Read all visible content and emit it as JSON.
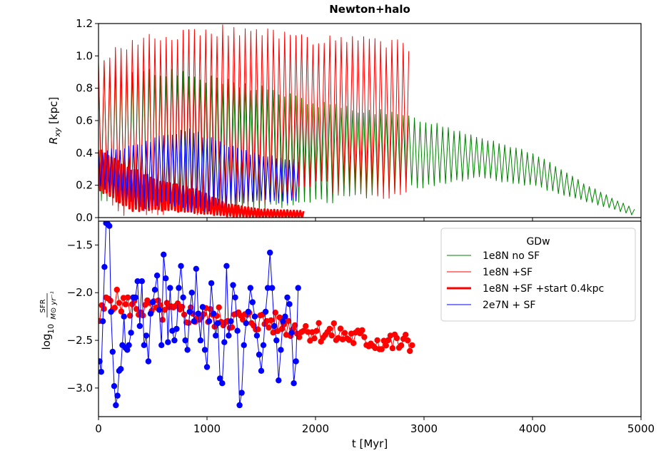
{
  "chart_data": {
    "type": "line",
    "title": "Newton+halo",
    "xlabel": "t [Myr]",
    "xlim": [
      0,
      5000
    ],
    "x_ticks": [
      "0",
      "1000",
      "2000",
      "3000",
      "4000",
      "5000"
    ],
    "panels": [
      {
        "id": "top",
        "ylabel": "R_xy [kpc]",
        "ylim": [
          0,
          1.2
        ],
        "y_ticks": [
          "0.0",
          "0.2",
          "0.4",
          "0.6",
          "0.8",
          "1.0",
          "1.2"
        ],
        "series": [
          {
            "name": "1e8N no SF",
            "color": "#008000",
            "style": "thin",
            "x_start": 0,
            "x_end": 4950,
            "period": 52,
            "envelope": [
              [
                0,
                0.1,
                0.95
              ],
              [
                600,
                0.1,
                0.9
              ],
              [
                1000,
                0.05,
                0.85
              ],
              [
                1500,
                0.05,
                0.8
              ],
              [
                2000,
                0.1,
                0.7
              ],
              [
                2600,
                0.15,
                0.65
              ],
              [
                3000,
                0.2,
                0.6
              ],
              [
                3500,
                0.25,
                0.5
              ],
              [
                4000,
                0.2,
                0.4
              ],
              [
                4500,
                0.1,
                0.2
              ],
              [
                4950,
                0.01,
                0.05
              ]
            ]
          },
          {
            "name": "1e8N +SF",
            "color": "#ff0000",
            "style": "thin",
            "x_start": 0,
            "x_end": 2880,
            "period": 52,
            "envelope": [
              [
                0,
                0.15,
                0.95
              ],
              [
                200,
                0.05,
                1.05
              ],
              [
                500,
                0.05,
                1.1
              ],
              [
                1000,
                0.05,
                1.15
              ],
              [
                1600,
                0.1,
                1.15
              ],
              [
                2000,
                0.2,
                1.1
              ],
              [
                2500,
                0.15,
                1.1
              ],
              [
                2880,
                0.15,
                1.05
              ]
            ]
          },
          {
            "name": "1e8N +SF +start 0.4kpc",
            "color": "#ff0000",
            "style": "thick",
            "x_start": 0,
            "x_end": 1900,
            "period": 30,
            "envelope": [
              [
                0,
                0.18,
                0.42
              ],
              [
                300,
                0.05,
                0.3
              ],
              [
                600,
                0.05,
                0.22
              ],
              [
                900,
                0.03,
                0.17
              ],
              [
                1200,
                0.01,
                0.08
              ],
              [
                1500,
                0.0,
                0.05
              ],
              [
                1900,
                0.0,
                0.04
              ]
            ]
          },
          {
            "name": "2e7N + SF",
            "color": "#0000ff",
            "style": "thin",
            "x_start": 0,
            "x_end": 1850,
            "period": 40,
            "envelope": [
              [
                0,
                0.2,
                0.4
              ],
              [
                400,
                0.05,
                0.45
              ],
              [
                600,
                0.1,
                0.5
              ],
              [
                800,
                0.05,
                0.55
              ],
              [
                1000,
                0.05,
                0.5
              ],
              [
                1400,
                0.1,
                0.4
              ],
              [
                1850,
                0.1,
                0.35
              ]
            ]
          }
        ]
      },
      {
        "id": "bottom",
        "ylabel": "log10 SFR / M⊙ yr⁻¹",
        "ylabel_main": "log",
        "ylabel_sub": "10",
        "ylabel_num": "SFR",
        "ylabel_den": "M⊙ yr⁻¹",
        "ylim": [
          -3.3,
          -1.25
        ],
        "y_ticks": [
          "-3.0",
          "-2.5",
          "-2.0",
          "-1.5"
        ],
        "y_tick_values": [
          -3.0,
          -2.5,
          -2.0,
          -1.5
        ],
        "series": [
          {
            "name": "1e8N +SF +start 0.4kpc",
            "color": "#ff0000",
            "style": "markers",
            "x_start": 10,
            "x_end": 2900,
            "step": 20,
            "trend": [
              [
                0,
                -2.3
              ],
              [
                100,
                -2.05
              ],
              [
                300,
                -2.15
              ],
              [
                600,
                -2.2
              ],
              [
                1000,
                -2.25
              ],
              [
                1500,
                -2.3
              ],
              [
                2000,
                -2.4
              ],
              [
                2500,
                -2.5
              ],
              [
                2900,
                -2.55
              ]
            ],
            "amp": 0.12
          },
          {
            "name": "2e7N + SF",
            "color": "#0000ff",
            "style": "markers",
            "points": [
              [
                10,
                -2.72
              ],
              [
                25,
                -2.83
              ],
              [
                40,
                -2.3
              ],
              [
                55,
                -1.73
              ],
              [
                70,
                -1.27
              ],
              [
                85,
                -1.28
              ],
              [
                100,
                -1.3
              ],
              [
                115,
                -2.2
              ],
              [
                130,
                -2.62
              ],
              [
                145,
                -2.98
              ],
              [
                160,
                -3.18
              ],
              [
                175,
                -3.08
              ],
              [
                190,
                -2.82
              ],
              [
                205,
                -2.8
              ],
              [
                220,
                -2.55
              ],
              [
                235,
                -2.25
              ],
              [
                250,
                -2.58
              ],
              [
                265,
                -2.6
              ],
              [
                280,
                -2.55
              ],
              [
                300,
                -2.42
              ],
              [
                320,
                -2.05
              ],
              [
                340,
                -2.05
              ],
              [
                360,
                -1.88
              ],
              [
                380,
                -2.35
              ],
              [
                400,
                -1.88
              ],
              [
                420,
                -2.55
              ],
              [
                440,
                -2.45
              ],
              [
                460,
                -2.72
              ],
              [
                480,
                -2.22
              ],
              [
                500,
                -2.1
              ],
              [
                520,
                -1.97
              ],
              [
                540,
                -1.82
              ],
              [
                560,
                -2.18
              ],
              [
                580,
                -2.55
              ],
              [
                600,
                -1.6
              ],
              [
                620,
                -1.85
              ],
              [
                640,
                -2.52
              ],
              [
                660,
                -1.95
              ],
              [
                680,
                -2.4
              ],
              [
                700,
                -2.5
              ],
              [
                720,
                -2.38
              ],
              [
                740,
                -1.95
              ],
              [
                760,
                -1.72
              ],
              [
                780,
                -2.05
              ],
              [
                800,
                -2.5
              ],
              [
                820,
                -2.6
              ],
              [
                840,
                -2.2
              ],
              [
                860,
                -2.0
              ],
              [
                880,
                -2.3
              ],
              [
                900,
                -1.75
              ],
              [
                920,
                -2.22
              ],
              [
                940,
                -2.5
              ],
              [
                960,
                -2.15
              ],
              [
                980,
                -2.6
              ],
              [
                1000,
                -2.78
              ],
              [
                1020,
                -2.3
              ],
              [
                1040,
                -1.9
              ],
              [
                1060,
                -2.22
              ],
              [
                1080,
                -2.45
              ],
              [
                1100,
                -2.32
              ],
              [
                1120,
                -2.9
              ],
              [
                1140,
                -2.95
              ],
              [
                1160,
                -2.52
              ],
              [
                1180,
                -1.72
              ],
              [
                1200,
                -2.45
              ],
              [
                1220,
                -2.3
              ],
              [
                1240,
                -1.92
              ],
              [
                1260,
                -2.05
              ],
              [
                1280,
                -2.4
              ],
              [
                1300,
                -3.18
              ],
              [
                1320,
                -3.05
              ],
              [
                1340,
                -2.55
              ],
              [
                1360,
                -2.32
              ],
              [
                1380,
                -2.2
              ],
              [
                1400,
                -1.95
              ],
              [
                1420,
                -2.1
              ],
              [
                1440,
                -2.25
              ],
              [
                1460,
                -2.45
              ],
              [
                1480,
                -2.65
              ],
              [
                1500,
                -2.82
              ],
              [
                1520,
                -2.55
              ],
              [
                1540,
                -2.2
              ],
              [
                1560,
                -1.95
              ],
              [
                1580,
                -1.58
              ],
              [
                1600,
                -1.95
              ],
              [
                1620,
                -2.35
              ],
              [
                1640,
                -2.5
              ],
              [
                1660,
                -2.92
              ],
              [
                1680,
                -2.6
              ],
              [
                1700,
                -2.3
              ],
              [
                1720,
                -2.25
              ],
              [
                1740,
                -2.05
              ],
              [
                1760,
                -2.12
              ],
              [
                1780,
                -2.42
              ],
              [
                1800,
                -2.95
              ],
              [
                1820,
                -2.72
              ],
              [
                1840,
                -1.95
              ]
            ]
          }
        ]
      }
    ],
    "legend": {
      "title": "GDw",
      "position": "upper-right",
      "entries": [
        {
          "label": "1e8N no SF",
          "color": "#008000",
          "style": "thin"
        },
        {
          "label": "1e8N +SF",
          "color": "#ff0000",
          "style": "thin"
        },
        {
          "label": "1e8N +SF +start 0.4kpc",
          "color": "#ff0000",
          "style": "thick"
        },
        {
          "label": "2e7N + SF",
          "color": "#0000ff",
          "style": "thin"
        }
      ]
    }
  }
}
